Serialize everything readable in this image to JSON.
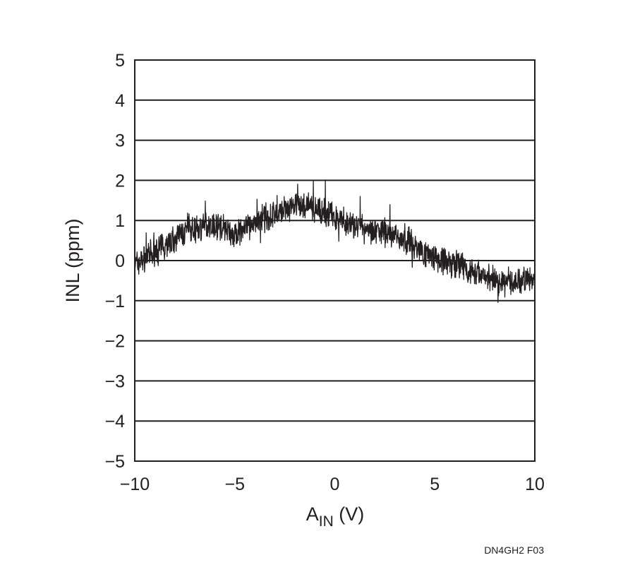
{
  "chart_data": {
    "type": "line",
    "xlabel_main": "A",
    "xlabel_sub": "IN",
    "xlabel_unit": " (V)",
    "ylabel": "INL (ppm)",
    "xlim": [
      -10,
      10
    ],
    "ylim": [
      -5,
      5
    ],
    "x_ticks": [
      -10,
      -5,
      0,
      5,
      10
    ],
    "x_tick_labels": [
      "−10",
      "−5",
      "0",
      "5",
      "10"
    ],
    "y_ticks": [
      5,
      4,
      3,
      2,
      1,
      0,
      -1,
      -2,
      -3,
      -4,
      -5
    ],
    "y_tick_labels": [
      "5",
      "4",
      "3",
      "2",
      "1",
      "0",
      "−1",
      "−2",
      "−3",
      "−4",
      "−5"
    ],
    "grid": "horizontal",
    "line_color": "#231f20",
    "series": [
      {
        "x": [
          -10,
          -9.5,
          -9,
          -8.5,
          -8,
          -7.5,
          -7,
          -6.5,
          -6,
          -5.5,
          -5,
          -4.5,
          -4,
          -3.5,
          -3,
          -2.5,
          -2,
          -1.5,
          -1,
          -0.5,
          0,
          0.5,
          1,
          1.5,
          2,
          2.5,
          3,
          3.5,
          4,
          4.5,
          5,
          5.5,
          6,
          6.5,
          7,
          7.5,
          8,
          8.5,
          9,
          9.5,
          10
        ],
        "y": [
          -0.1,
          0.05,
          0.2,
          0.4,
          0.55,
          0.7,
          0.8,
          0.85,
          0.9,
          0.8,
          0.6,
          0.8,
          0.95,
          1.05,
          1.15,
          1.25,
          1.3,
          1.35,
          1.3,
          1.2,
          1.1,
          0.95,
          0.85,
          0.8,
          0.75,
          0.7,
          0.65,
          0.55,
          0.35,
          0.2,
          0.1,
          0.0,
          -0.1,
          -0.2,
          -0.3,
          -0.35,
          -0.45,
          -0.55,
          -0.5,
          -0.45,
          -0.5
        ]
      }
    ]
  },
  "figure_id": "DN4GH2 F03"
}
